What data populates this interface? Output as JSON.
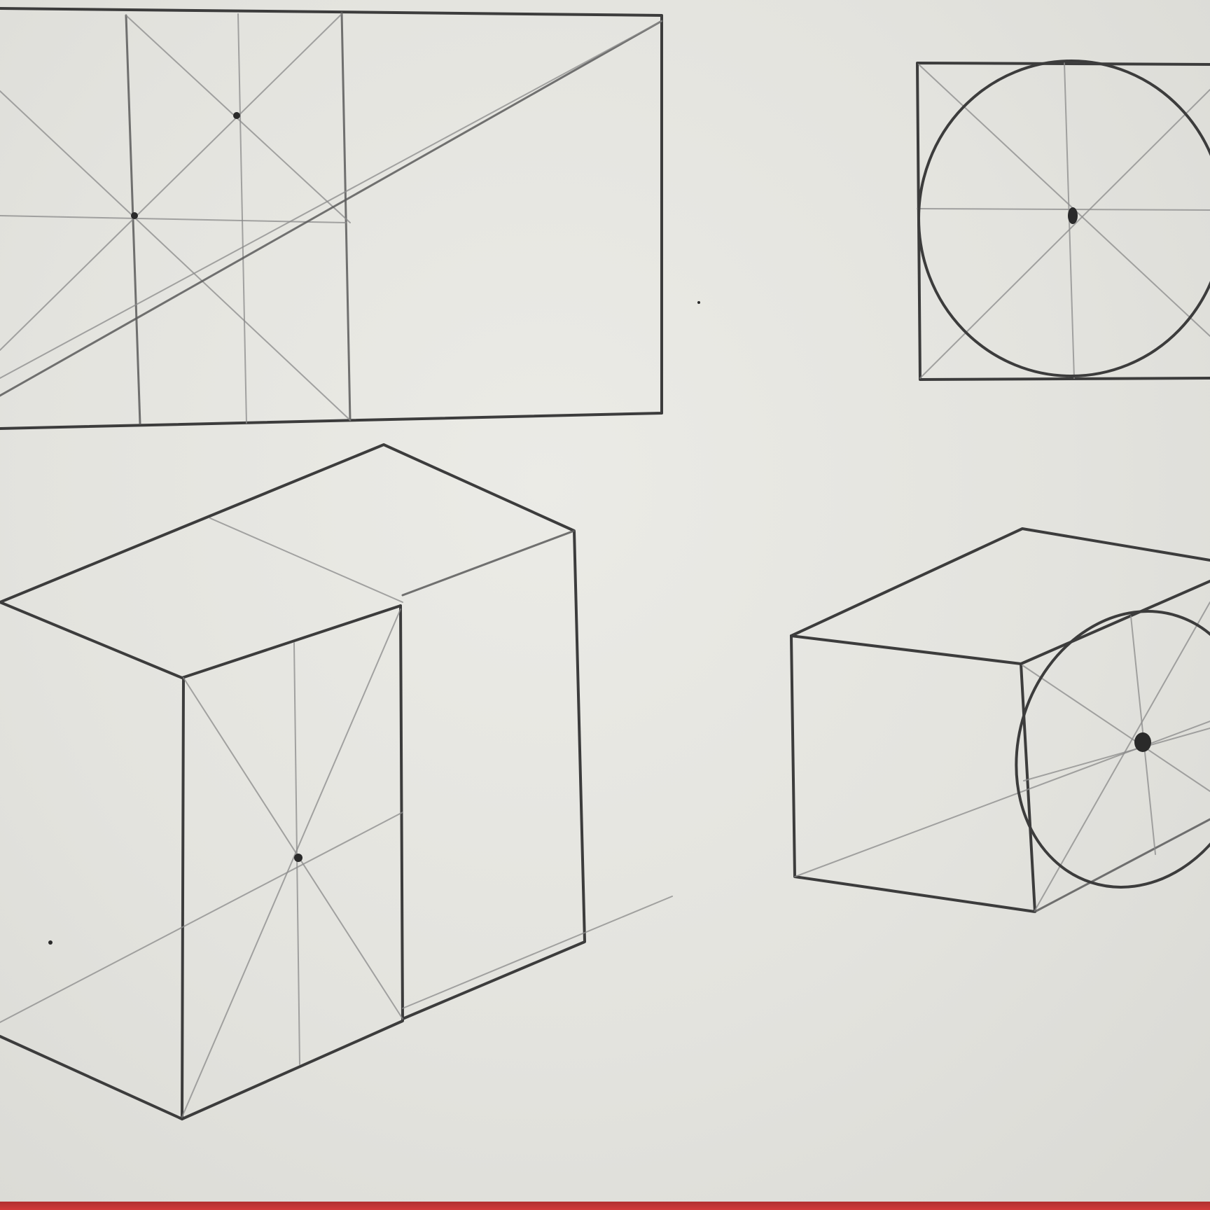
{
  "scene": {
    "paper_color": "#e6e6e1",
    "graphite_color": "#3c3c3c",
    "table_edge_color": "#c83232",
    "drawings": [
      {
        "name": "rectangle-proportion-study"
      },
      {
        "name": "square-with-inscribed-circle"
      },
      {
        "name": "box-in-perspective"
      },
      {
        "name": "cube-with-ellipse-in-perspective"
      }
    ]
  }
}
